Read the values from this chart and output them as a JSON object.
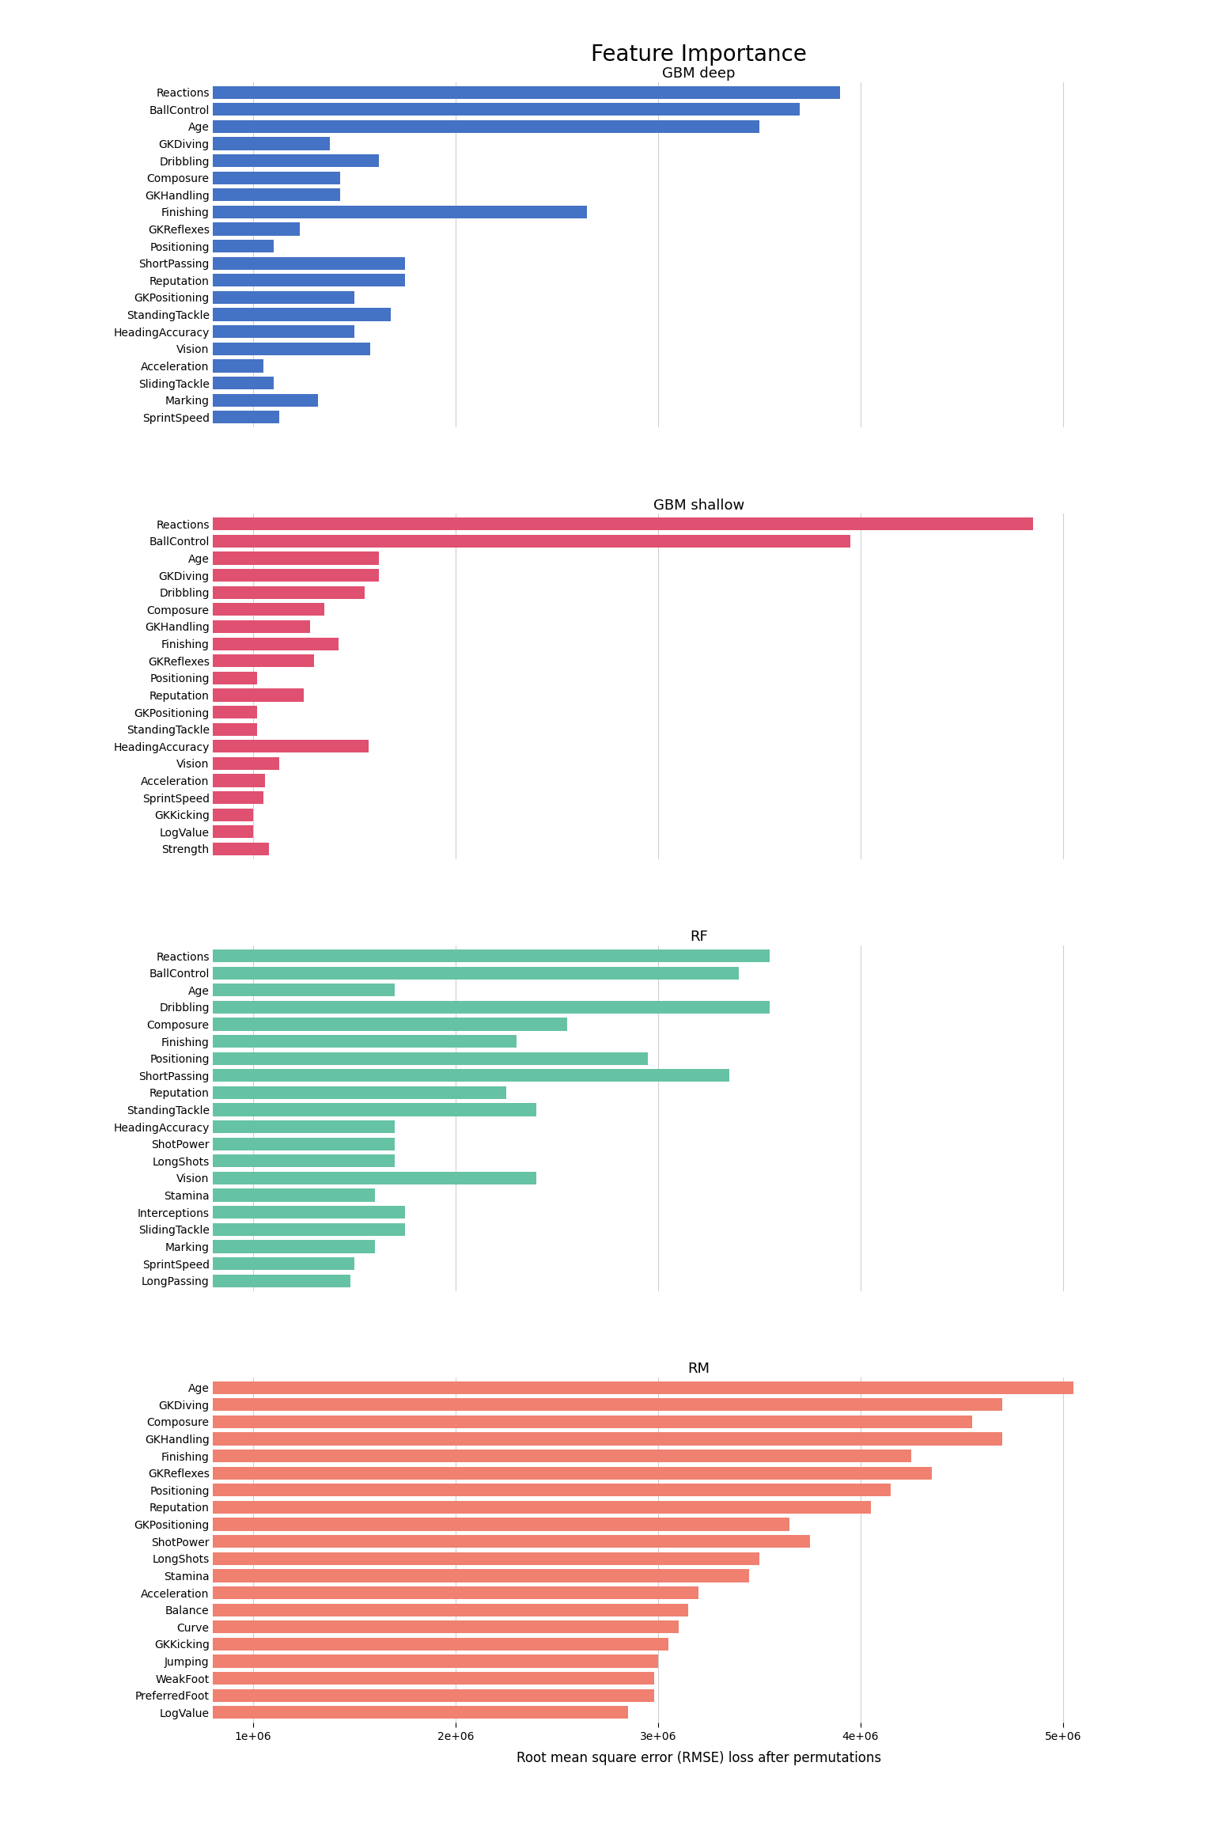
{
  "title": "Feature Importance",
  "xlabel": "Root mean square error (RMSE) loss after permutations",
  "xlim": [
    800000,
    5600000
  ],
  "xticks": [
    1000000,
    2000000,
    3000000,
    4000000,
    5000000
  ],
  "xticklabels": [
    "1e+06",
    "2e+06",
    "3e+06",
    "4e+06",
    "5e+06"
  ],
  "panels": [
    {
      "title": "GBM deep",
      "color": "#4472c4",
      "features": [
        "Reactions",
        "BallControl",
        "Age",
        "GKDiving",
        "Dribbling",
        "Composure",
        "GKHandling",
        "Finishing",
        "GKReflexes",
        "Positioning",
        "ShortPassing",
        "Reputation",
        "GKPositioning",
        "StandingTackle",
        "HeadingAccuracy",
        "Vision",
        "Acceleration",
        "SlidingTackle",
        "Marking",
        "SprintSpeed"
      ],
      "values": [
        3900000,
        3700000,
        3500000,
        1380000,
        1620000,
        1430000,
        1430000,
        2650000,
        1230000,
        1100000,
        1750000,
        1750000,
        1500000,
        1680000,
        1500000,
        1580000,
        1050000,
        1100000,
        1320000,
        1130000
      ]
    },
    {
      "title": "GBM shallow",
      "color": "#e05070",
      "features": [
        "Reactions",
        "BallControl",
        "Age",
        "GKDiving",
        "Dribbling",
        "Composure",
        "GKHandling",
        "Finishing",
        "GKReflexes",
        "Positioning",
        "Reputation",
        "GKPositioning",
        "StandingTackle",
        "HeadingAccuracy",
        "Vision",
        "Acceleration",
        "SprintSpeed",
        "GKKicking",
        "LogValue",
        "Strength"
      ],
      "values": [
        4850000,
        3950000,
        1620000,
        1620000,
        1550000,
        1350000,
        1280000,
        1420000,
        1300000,
        1020000,
        1250000,
        1020000,
        1020000,
        1570000,
        1130000,
        1060000,
        1050000,
        1000000,
        1000000,
        1080000
      ]
    },
    {
      "title": "RF",
      "color": "#66c2a5",
      "features": [
        "Reactions",
        "BallControl",
        "Age",
        "Dribbling",
        "Composure",
        "Finishing",
        "Positioning",
        "ShortPassing",
        "Reputation",
        "StandingTackle",
        "HeadingAccuracy",
        "ShotPower",
        "LongShots",
        "Vision",
        "Stamina",
        "Interceptions",
        "SlidingTackle",
        "Marking",
        "SprintSpeed",
        "LongPassing"
      ],
      "values": [
        3550000,
        3400000,
        1700000,
        3550000,
        2550000,
        2300000,
        2950000,
        3350000,
        2250000,
        2400000,
        1700000,
        1700000,
        1700000,
        2400000,
        1600000,
        1750000,
        1750000,
        1600000,
        1500000,
        1480000
      ]
    },
    {
      "title": "RM",
      "color": "#f08070",
      "features": [
        "Age",
        "GKDiving",
        "Composure",
        "GKHandling",
        "Finishing",
        "GKReflexes",
        "Positioning",
        "Reputation",
        "GKPositioning",
        "ShotPower",
        "LongShots",
        "Stamina",
        "Acceleration",
        "Balance",
        "Curve",
        "GKKicking",
        "Jumping",
        "WeakFoot",
        "PreferredFoot",
        "LogValue"
      ],
      "values": [
        5050000,
        4700000,
        4550000,
        4700000,
        4250000,
        4350000,
        4150000,
        4050000,
        3650000,
        3750000,
        3500000,
        3450000,
        3200000,
        3150000,
        3100000,
        3050000,
        3000000,
        2980000,
        2980000,
        2850000
      ]
    }
  ]
}
